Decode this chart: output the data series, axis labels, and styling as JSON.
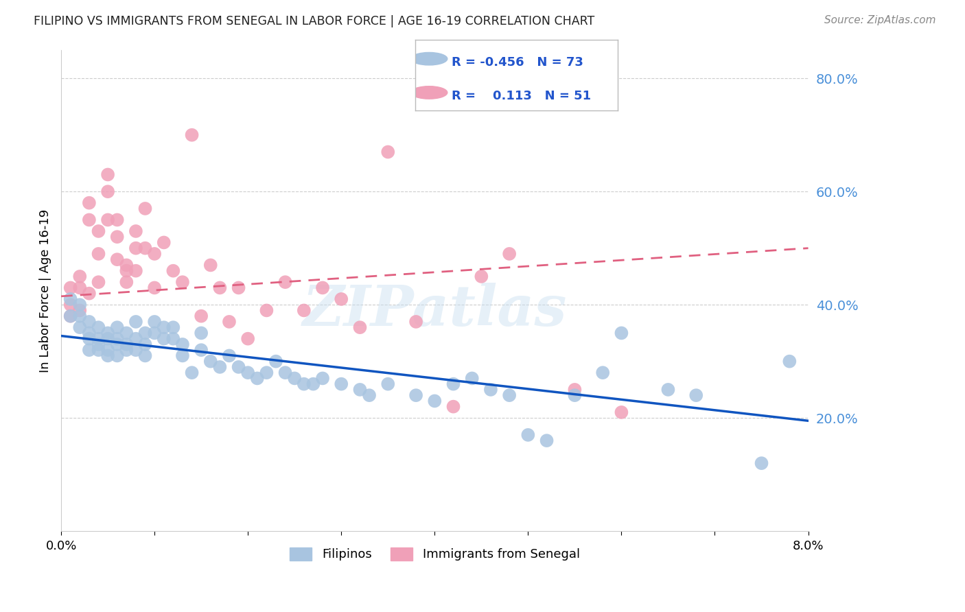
{
  "title": "FILIPINO VS IMMIGRANTS FROM SENEGAL IN LABOR FORCE | AGE 16-19 CORRELATION CHART",
  "source": "Source: ZipAtlas.com",
  "ylabel": "In Labor Force | Age 16-19",
  "xmin": 0.0,
  "xmax": 0.08,
  "ymin": 0.0,
  "ymax": 0.85,
  "yticks": [
    0.2,
    0.4,
    0.6,
    0.8
  ],
  "ytick_labels": [
    "20.0%",
    "40.0%",
    "60.0%",
    "80.0%"
  ],
  "legend_R_blue": "-0.456",
  "legend_N_blue": "73",
  "legend_R_pink": "0.113",
  "legend_N_pink": "51",
  "blue_color": "#a8c4e0",
  "pink_color": "#f0a0b8",
  "blue_line_color": "#1055c0",
  "pink_line_color": "#e06080",
  "watermark": "ZIPatlas",
  "blue_line_x0": 0.0,
  "blue_line_y0": 0.345,
  "blue_line_x1": 0.08,
  "blue_line_y1": 0.195,
  "pink_line_x0": 0.0,
  "pink_line_y0": 0.415,
  "pink_line_x1": 0.08,
  "pink_line_y1": 0.5,
  "blue_scatter_x": [
    0.001,
    0.001,
    0.002,
    0.002,
    0.002,
    0.003,
    0.003,
    0.003,
    0.003,
    0.004,
    0.004,
    0.004,
    0.004,
    0.005,
    0.005,
    0.005,
    0.005,
    0.006,
    0.006,
    0.006,
    0.006,
    0.007,
    0.007,
    0.007,
    0.008,
    0.008,
    0.008,
    0.009,
    0.009,
    0.009,
    0.01,
    0.01,
    0.011,
    0.011,
    0.012,
    0.012,
    0.013,
    0.013,
    0.014,
    0.015,
    0.015,
    0.016,
    0.017,
    0.018,
    0.019,
    0.02,
    0.021,
    0.022,
    0.023,
    0.024,
    0.025,
    0.026,
    0.027,
    0.028,
    0.03,
    0.032,
    0.033,
    0.035,
    0.038,
    0.04,
    0.042,
    0.044,
    0.046,
    0.048,
    0.05,
    0.052,
    0.055,
    0.058,
    0.06,
    0.065,
    0.068,
    0.075,
    0.078
  ],
  "blue_scatter_y": [
    0.41,
    0.38,
    0.4,
    0.36,
    0.38,
    0.37,
    0.35,
    0.34,
    0.32,
    0.36,
    0.34,
    0.33,
    0.32,
    0.35,
    0.34,
    0.32,
    0.31,
    0.36,
    0.34,
    0.33,
    0.31,
    0.35,
    0.33,
    0.32,
    0.37,
    0.34,
    0.32,
    0.35,
    0.33,
    0.31,
    0.37,
    0.35,
    0.36,
    0.34,
    0.36,
    0.34,
    0.33,
    0.31,
    0.28,
    0.35,
    0.32,
    0.3,
    0.29,
    0.31,
    0.29,
    0.28,
    0.27,
    0.28,
    0.3,
    0.28,
    0.27,
    0.26,
    0.26,
    0.27,
    0.26,
    0.25,
    0.24,
    0.26,
    0.24,
    0.23,
    0.26,
    0.27,
    0.25,
    0.24,
    0.17,
    0.16,
    0.24,
    0.28,
    0.35,
    0.25,
    0.24,
    0.12,
    0.3
  ],
  "pink_scatter_x": [
    0.001,
    0.001,
    0.001,
    0.002,
    0.002,
    0.002,
    0.003,
    0.003,
    0.003,
    0.004,
    0.004,
    0.004,
    0.005,
    0.005,
    0.005,
    0.006,
    0.006,
    0.006,
    0.007,
    0.007,
    0.007,
    0.008,
    0.008,
    0.008,
    0.009,
    0.009,
    0.01,
    0.01,
    0.011,
    0.012,
    0.013,
    0.014,
    0.015,
    0.016,
    0.017,
    0.018,
    0.019,
    0.02,
    0.022,
    0.024,
    0.026,
    0.028,
    0.03,
    0.032,
    0.035,
    0.038,
    0.042,
    0.045,
    0.048,
    0.055,
    0.06
  ],
  "pink_scatter_y": [
    0.43,
    0.4,
    0.38,
    0.45,
    0.43,
    0.39,
    0.58,
    0.55,
    0.42,
    0.53,
    0.49,
    0.44,
    0.63,
    0.6,
    0.55,
    0.55,
    0.52,
    0.48,
    0.47,
    0.46,
    0.44,
    0.53,
    0.5,
    0.46,
    0.57,
    0.5,
    0.49,
    0.43,
    0.51,
    0.46,
    0.44,
    0.7,
    0.38,
    0.47,
    0.43,
    0.37,
    0.43,
    0.34,
    0.39,
    0.44,
    0.39,
    0.43,
    0.41,
    0.36,
    0.67,
    0.37,
    0.22,
    0.45,
    0.49,
    0.25,
    0.21
  ]
}
